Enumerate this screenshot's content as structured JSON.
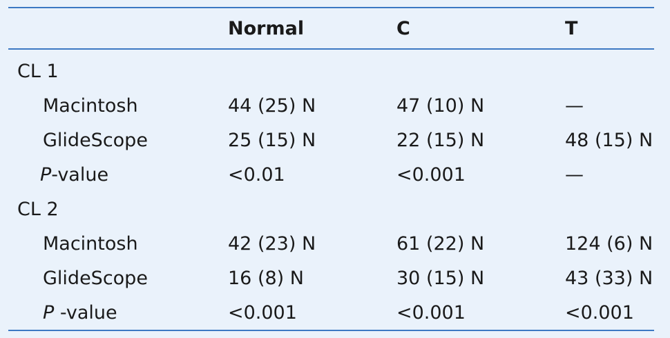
{
  "table": {
    "headers": [
      "",
      "Normal",
      "C",
      "T"
    ],
    "groups": [
      {
        "label": "CL 1",
        "rows": [
          {
            "label": "Macintosh",
            "italic_prefix": "",
            "normal": "44 (25) N",
            "c": "47 (10) N",
            "t": "—"
          },
          {
            "label": "GlideScope",
            "italic_prefix": "",
            "normal": "25 (15) N",
            "c": "22 (15) N",
            "t": "48 (15) N"
          },
          {
            "label": "-value",
            "italic_prefix": "P",
            "normal": "<0.01",
            "c": "<0.001",
            "t": "—"
          }
        ]
      },
      {
        "label": "CL 2",
        "rows": [
          {
            "label": "Macintosh",
            "italic_prefix": "",
            "normal": "42 (23) N",
            "c": "61 (22) N",
            "t": "124 (6) N"
          },
          {
            "label": "GlideScope",
            "italic_prefix": "",
            "normal": "16 (8) N",
            "c": "30 (15) N",
            "t": "43 (33) N"
          },
          {
            "label": " -value",
            "italic_prefix": "P",
            "normal": "<0.001",
            "c": "<0.001",
            "t": "<0.001"
          }
        ]
      }
    ]
  },
  "colors": {
    "background": "#eaf2fb",
    "rule": "#3c78c3",
    "text": "#1a1a1a"
  }
}
